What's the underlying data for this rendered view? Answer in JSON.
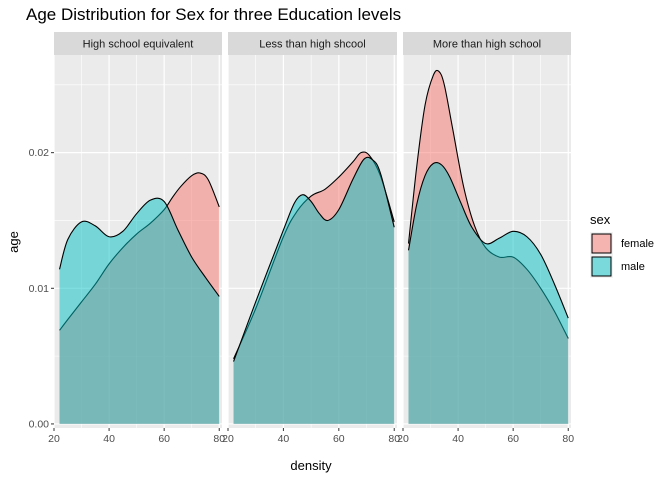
{
  "chart_data": {
    "type": "area",
    "title": "Age Distribution for Sex for three Education levels",
    "xlabel": "density",
    "ylabel": "age",
    "xlim": [
      20,
      81
    ],
    "ylim": [
      -0.0003,
      0.0272
    ],
    "x_ticks": [
      20,
      40,
      60,
      80
    ],
    "x_tick_labels": [
      "20",
      "40",
      "60",
      "80"
    ],
    "y_ticks": [
      0.0,
      0.01,
      0.02
    ],
    "y_tick_labels": [
      "0.00",
      "0.01",
      "0.02"
    ],
    "grid": true,
    "legend": {
      "title": "sex",
      "position": "right",
      "entries": [
        {
          "label": "female",
          "color": "#F8766D"
        },
        {
          "label": "male",
          "color": "#00BFC4"
        }
      ]
    },
    "colors": {
      "female": "#F8766D",
      "male": "#00BFC4",
      "panel_bg": "#EBEBEB",
      "strip_bg": "#D9D9D9"
    },
    "facets": [
      {
        "label": "High school equivalent",
        "series": [
          {
            "name": "female",
            "x": [
              22,
              25,
              30,
              35,
              40,
              45,
              50,
              55,
              60,
              63,
              66,
              70,
              73,
              76,
              80
            ],
            "y": [
              0.0069,
              0.0077,
              0.009,
              0.0103,
              0.0118,
              0.013,
              0.014,
              0.0148,
              0.0158,
              0.0167,
              0.0175,
              0.0183,
              0.0185,
              0.018,
              0.016
            ]
          },
          {
            "name": "male",
            "x": [
              22,
              25,
              30,
              35,
              40,
              45,
              50,
              55,
              60,
              65,
              70,
              75,
              80
            ],
            "y": [
              0.0114,
              0.0136,
              0.0149,
              0.0146,
              0.0138,
              0.0142,
              0.0155,
              0.0165,
              0.0164,
              0.0143,
              0.0123,
              0.0108,
              0.0094
            ]
          }
        ]
      },
      {
        "label": "Less than high shcool",
        "series": [
          {
            "name": "female",
            "x": [
              22,
              30,
              40,
              45,
              50,
              55,
              60,
              65,
              68,
              71,
              75,
              80
            ],
            "y": [
              0.0048,
              0.0085,
              0.0138,
              0.0157,
              0.0168,
              0.0173,
              0.0182,
              0.0193,
              0.02,
              0.0198,
              0.0183,
              0.0149
            ]
          },
          {
            "name": "male",
            "x": [
              22,
              30,
              40,
              44,
              47,
              50,
              53,
              56,
              60,
              65,
              69,
              72,
              75,
              80
            ],
            "y": [
              0.0046,
              0.009,
              0.0143,
              0.0163,
              0.0169,
              0.0164,
              0.0155,
              0.015,
              0.0158,
              0.018,
              0.0195,
              0.0195,
              0.0185,
              0.0145
            ]
          }
        ]
      },
      {
        "label": "More than high school",
        "series": [
          {
            "name": "female",
            "x": [
              22,
              25,
              28,
              31,
              33,
              35,
              38,
              42,
              46,
              50,
              55,
              60,
              65,
              70,
              75,
              80
            ],
            "y": [
              0.0133,
              0.019,
              0.0235,
              0.0257,
              0.026,
              0.025,
              0.0218,
              0.0175,
              0.0146,
              0.013,
              0.0123,
              0.0123,
              0.0114,
              0.01,
              0.0083,
              0.0063
            ]
          },
          {
            "name": "male",
            "x": [
              22,
              25,
              28,
              31,
              34,
              37,
              41,
              45,
              50,
              55,
              60,
              65,
              70,
              75,
              80
            ],
            "y": [
              0.0128,
              0.0162,
              0.0183,
              0.0192,
              0.0191,
              0.0182,
              0.0163,
              0.0145,
              0.0133,
              0.0137,
              0.0142,
              0.0138,
              0.0125,
              0.0103,
              0.0078
            ]
          }
        ]
      }
    ]
  }
}
